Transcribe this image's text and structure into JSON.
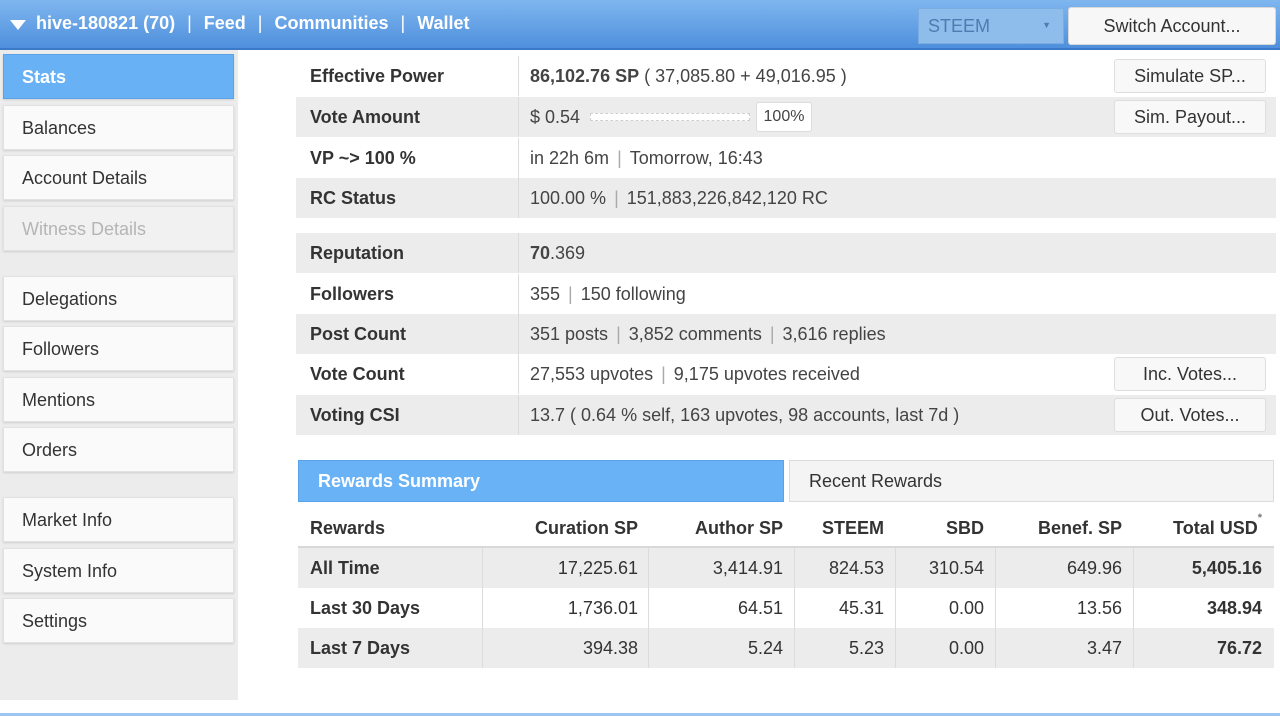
{
  "topbar": {
    "account": "hive-180821 (70)",
    "links": [
      "Feed",
      "Communities",
      "Wallet"
    ],
    "chain": "STEEM",
    "switch_label": "Switch Account..."
  },
  "sidebar": {
    "items": [
      {
        "label": "Stats"
      },
      {
        "label": "Balances"
      },
      {
        "label": "Account Details"
      },
      {
        "label": "Witness Details"
      },
      {
        "label": "Delegations"
      },
      {
        "label": "Followers"
      },
      {
        "label": "Mentions"
      },
      {
        "label": "Orders"
      },
      {
        "label": "Market Info"
      },
      {
        "label": "System Info"
      },
      {
        "label": "Settings"
      }
    ]
  },
  "stats": {
    "effective_power": {
      "label": "Effective Power",
      "value_bold": "86,102.76 SP",
      "value_rest": " ( 37,085.80 + 49,016.95 )",
      "button": "Simulate SP..."
    },
    "vote_amount": {
      "label": "Vote Amount",
      "value": "$ 0.54",
      "pct": "100%",
      "button": "Sim. Payout..."
    },
    "vp": {
      "label": "VP ~> 100 %",
      "a": "in 22h 6m",
      "b": "Tomorrow, 16:43"
    },
    "rc": {
      "label": "RC Status",
      "a": "100.00 %",
      "b": "151,883,226,842,120 RC"
    },
    "reputation": {
      "label": "Reputation",
      "int": "70",
      "dec": ".369"
    },
    "followers": {
      "label": "Followers",
      "a": "355",
      "b": "150 following"
    },
    "post_count": {
      "label": "Post Count",
      "a": "351 posts",
      "b": "3,852 comments",
      "c": "3,616 replies"
    },
    "vote_count": {
      "label": "Vote Count",
      "a": "27,553 upvotes",
      "b": "9,175 upvotes received",
      "button": "Inc. Votes..."
    },
    "voting_csi": {
      "label": "Voting CSI",
      "value": "13.7 ( 0.64 % self, 163 upvotes, 98 accounts, last 7d )",
      "button": "Out. Votes..."
    }
  },
  "rewards": {
    "tabs": [
      "Rewards Summary",
      "Recent Rewards"
    ],
    "headers": [
      "Rewards",
      "Curation SP",
      "Author SP",
      "STEEM",
      "SBD",
      "Benef. SP",
      "Total USD"
    ],
    "rows": [
      [
        "All Time",
        "17,225.61",
        "3,414.91",
        "824.53",
        "310.54",
        "649.96",
        "5,405.16"
      ],
      [
        "Last 30 Days",
        "1,736.01",
        "64.51",
        "45.31",
        "0.00",
        "13.56",
        "348.94"
      ],
      [
        "Last 7 Days",
        "394.38",
        "5.24",
        "5.23",
        "0.00",
        "3.47",
        "76.72"
      ]
    ]
  }
}
